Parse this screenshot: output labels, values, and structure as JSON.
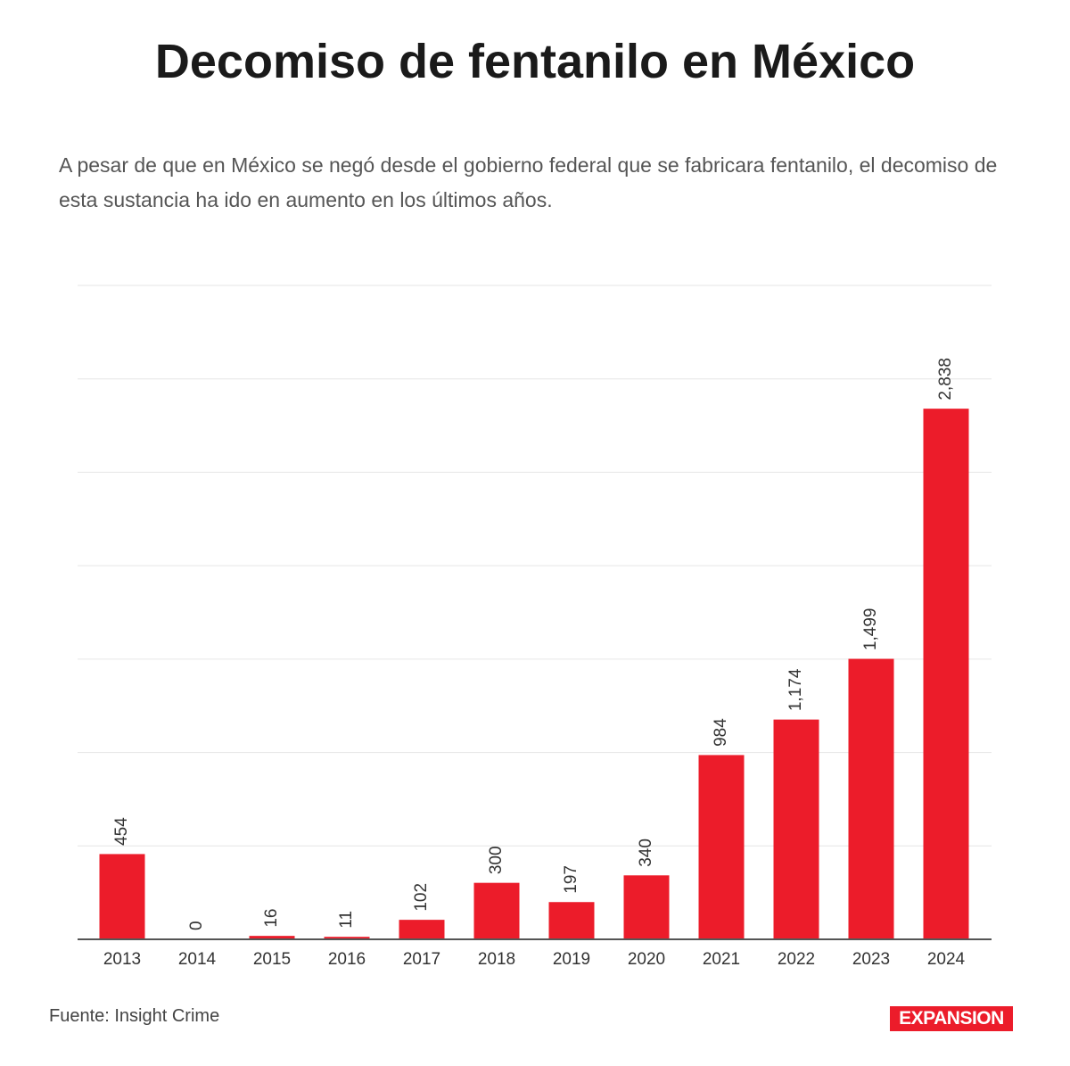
{
  "chart_data": {
    "type": "bar",
    "title": "Decomiso de fentanilo en México",
    "subtitle": "A pesar de que en México se negó desde el gobierno federal que se fabricara fentanilo, el decomiso de esta sustancia ha ido en aumento en los últimos años.",
    "categories": [
      "2013",
      "2014",
      "2015",
      "2016",
      "2017",
      "2018",
      "2019",
      "2020",
      "2021",
      "2022",
      "2023",
      "2024"
    ],
    "values": [
      454,
      0,
      16,
      11,
      102,
      300,
      197,
      340,
      984,
      1174,
      1499,
      2838
    ],
    "value_labels": [
      "454",
      "0",
      "16",
      "11",
      "102",
      "300",
      "197",
      "340",
      "984",
      "1,174",
      "1,499",
      "2,838"
    ],
    "color": "#ec1c2a",
    "ylim": [
      0,
      3500
    ],
    "yticks": [
      0,
      500,
      1000,
      1500,
      2000,
      2500,
      3000,
      3500
    ],
    "grid": true,
    "source": "Fuente: Insight Crime",
    "logo": "EXPANSION"
  }
}
